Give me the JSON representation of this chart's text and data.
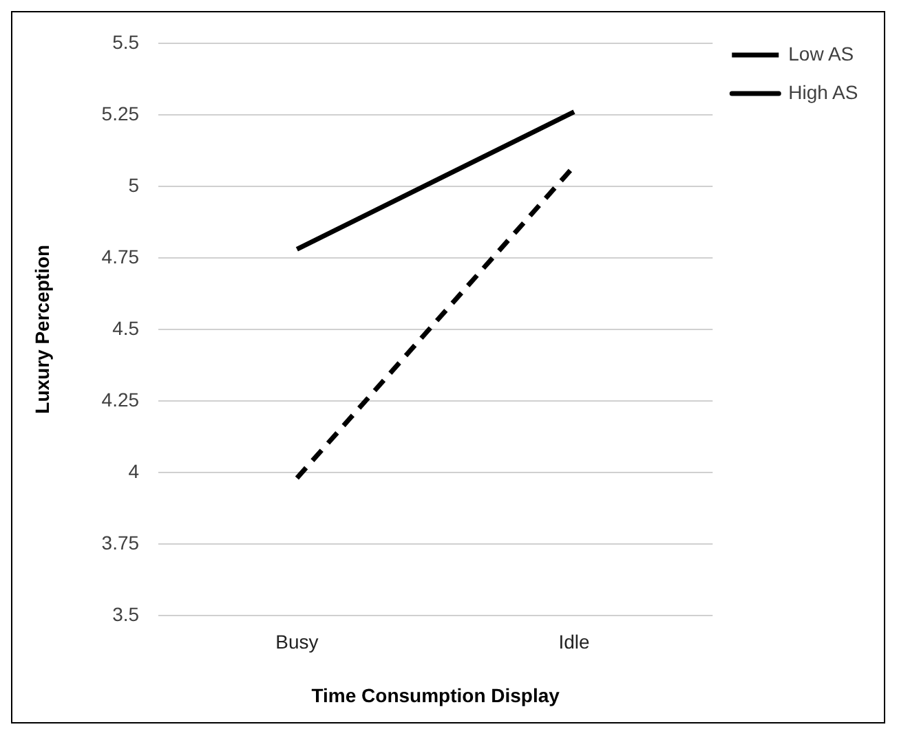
{
  "chart_data": {
    "type": "line",
    "xlabel": "Time Consumption Display",
    "ylabel": "Luxury Perception",
    "categories": [
      "Busy",
      "Idle"
    ],
    "series": [
      {
        "name": "Low AS",
        "color": "#000000",
        "values": [
          3.98,
          5.07
        ],
        "line_style": "dashed"
      },
      {
        "name": "High AS",
        "color": "#000000",
        "values": [
          4.78,
          5.26
        ],
        "line_style": "solid"
      }
    ],
    "ylim": [
      3.5,
      5.5
    ],
    "yticks": [
      3.5,
      3.75,
      4,
      4.25,
      4.5,
      4.75,
      5,
      5.25,
      5.5
    ],
    "grid": "y",
    "legend": "top right",
    "marker": "none"
  }
}
